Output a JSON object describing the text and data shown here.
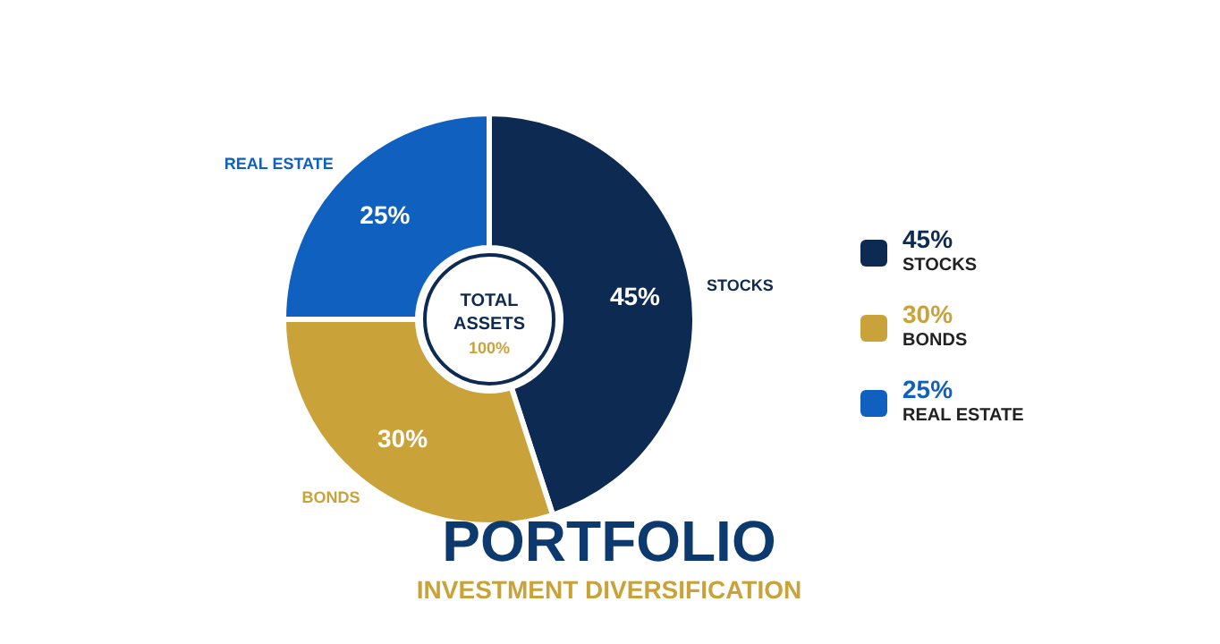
{
  "chart_data": {
    "type": "donut",
    "title": "PORTFOLIO",
    "subtitle": "INVESTMENT DIVERSIFICATION",
    "categories": [
      "STOCKS",
      "BONDS",
      "REAL ESTATE"
    ],
    "values": [
      45,
      30,
      25
    ],
    "value_labels": [
      "45%",
      "30%",
      "25%"
    ],
    "colors": [
      "#0d2a52",
      "#c9a23a",
      "#1060c0"
    ],
    "annotations": [
      "TOTAL ASSETS",
      "100%"
    ],
    "legend": "right"
  }
}
